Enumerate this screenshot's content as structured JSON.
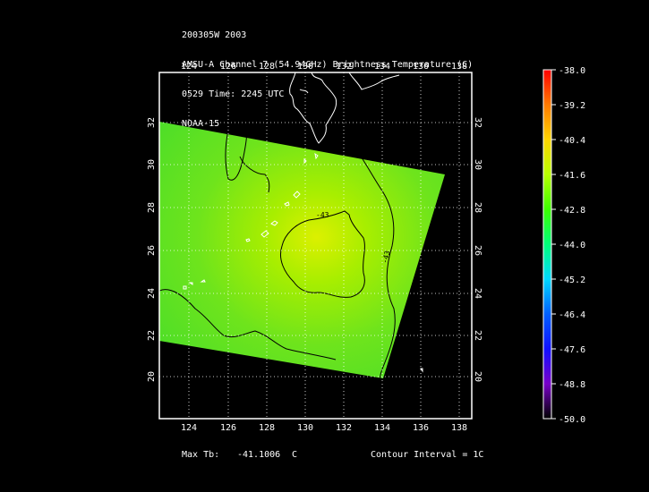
{
  "header": {
    "line1": "200305W 2003",
    "line2": "AMSU-A Channel 7 (54.94GHz) Brightness Temperature (C)",
    "line3": "0529 Time: 2245 UTC",
    "line4": "NOAA-15"
  },
  "map": {
    "lon_ticks": [
      "124",
      "126",
      "128",
      "130",
      "132",
      "134",
      "136",
      "138"
    ],
    "lat_ticks": [
      "32",
      "30",
      "28",
      "26",
      "24",
      "22",
      "20"
    ],
    "contour_labels": [
      "-43",
      "-43"
    ]
  },
  "colorbar": {
    "labels": [
      "-38.0",
      "-39.2",
      "-40.4",
      "-41.6",
      "-42.8",
      "-44.0",
      "-45.2",
      "-46.4",
      "-47.6",
      "-48.8",
      "-50.0"
    ],
    "colors": [
      "#ff0000",
      "#ff7a00",
      "#ffd400",
      "#b8ff00",
      "#3cff00",
      "#00ff7a",
      "#00d8ff",
      "#0060ff",
      "#1010ff",
      "#7800c8",
      "#2a0030"
    ]
  },
  "footer": {
    "max_tb_label": "Max Tb:",
    "max_tb_value": "-41.1006",
    "max_tb_unit": "C",
    "contour_interval": "Contour Interval = 1C"
  }
}
